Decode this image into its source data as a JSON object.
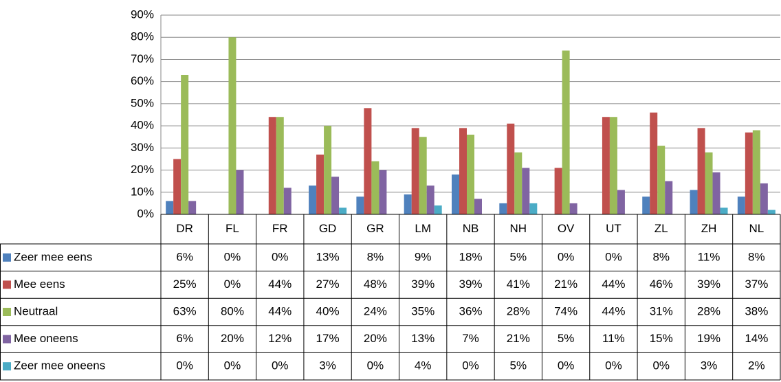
{
  "chart_data": {
    "type": "bar",
    "categories": [
      "DR",
      "FL",
      "FR",
      "GD",
      "GR",
      "LM",
      "NB",
      "NH",
      "OV",
      "UT",
      "ZL",
      "ZH",
      "NL"
    ],
    "series": [
      {
        "name": "Zeer mee eens",
        "color": "#4f81bd",
        "values": [
          6,
          0,
          0,
          13,
          8,
          9,
          18,
          5,
          0,
          0,
          8,
          11,
          8
        ],
        "value_labels": [
          "6%",
          "0%",
          "0%",
          "13%",
          "8%",
          "9%",
          "18%",
          "5%",
          "0%",
          "0%",
          "8%",
          "11%",
          "8%"
        ]
      },
      {
        "name": "Mee eens",
        "color": "#c0504d",
        "values": [
          25,
          0,
          44,
          27,
          48,
          39,
          39,
          41,
          21,
          44,
          46,
          39,
          37
        ],
        "value_labels": [
          "25%",
          "0%",
          "44%",
          "27%",
          "48%",
          "39%",
          "39%",
          "41%",
          "21%",
          "44%",
          "46%",
          "39%",
          "37%"
        ]
      },
      {
        "name": "Neutraal",
        "color": "#9bbb59",
        "values": [
          63,
          80,
          44,
          40,
          24,
          35,
          36,
          28,
          74,
          44,
          31,
          28,
          38
        ],
        "value_labels": [
          "63%",
          "80%",
          "44%",
          "40%",
          "24%",
          "35%",
          "36%",
          "28%",
          "74%",
          "44%",
          "31%",
          "28%",
          "38%"
        ]
      },
      {
        "name": "Mee oneens",
        "color": "#8064a2",
        "values": [
          6,
          20,
          12,
          17,
          20,
          13,
          7,
          21,
          5,
          11,
          15,
          19,
          14
        ],
        "value_labels": [
          "6%",
          "20%",
          "12%",
          "17%",
          "20%",
          "13%",
          "7%",
          "21%",
          "5%",
          "11%",
          "15%",
          "19%",
          "14%"
        ]
      },
      {
        "name": "Zeer mee oneens",
        "color": "#4bacc6",
        "values": [
          0,
          0,
          0,
          3,
          0,
          4,
          0,
          5,
          0,
          0,
          0,
          3,
          2
        ],
        "value_labels": [
          "0%",
          "0%",
          "0%",
          "3%",
          "0%",
          "4%",
          "0%",
          "5%",
          "0%",
          "0%",
          "0%",
          "3%",
          "2%"
        ]
      }
    ],
    "ylim": [
      0,
      90
    ],
    "yticks": [
      {
        "value": 0,
        "label": "0%"
      },
      {
        "value": 10,
        "label": "10%"
      },
      {
        "value": 20,
        "label": "20%"
      },
      {
        "value": 30,
        "label": "30%"
      },
      {
        "value": 40,
        "label": "40%"
      },
      {
        "value": 50,
        "label": "50%"
      },
      {
        "value": 60,
        "label": "60%"
      },
      {
        "value": 70,
        "label": "70%"
      },
      {
        "value": 80,
        "label": "80%"
      },
      {
        "value": 90,
        "label": "90%"
      }
    ],
    "grid": true
  }
}
